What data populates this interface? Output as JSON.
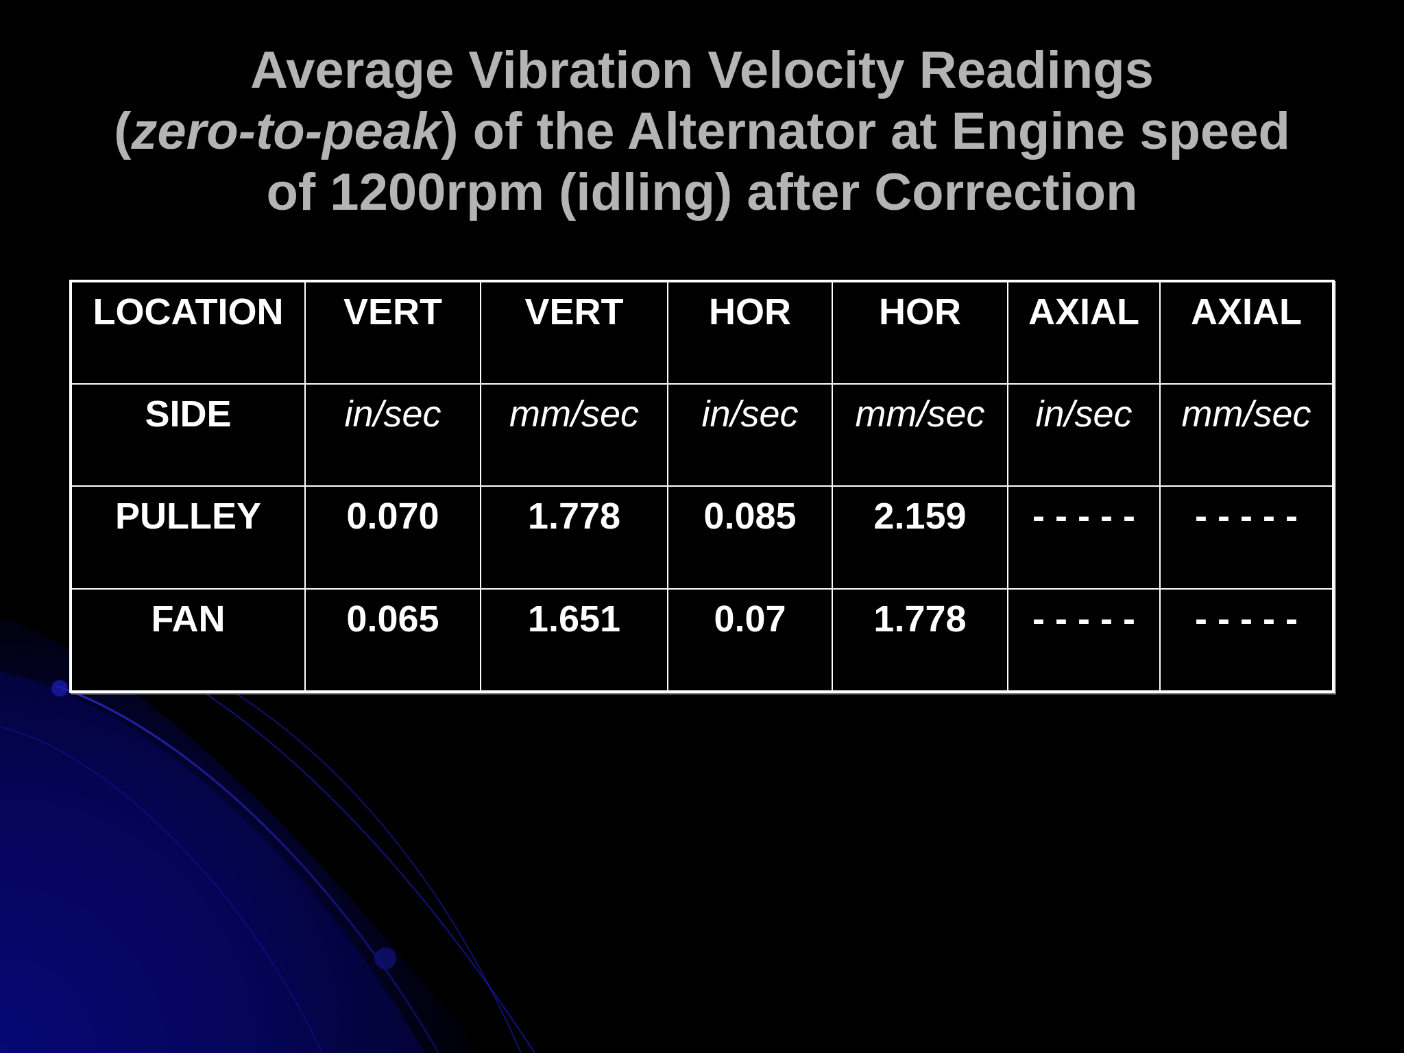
{
  "slide": {
    "title_line1": "Average Vibration Velocity Readings",
    "title_line2_open": "(",
    "title_line2_italic": "zero-to-peak",
    "title_line2_rest": ") of the Alternator at Engine speed",
    "title_line3": "of 1200rpm (idling) after Correction"
  },
  "table": {
    "headers": [
      "LOCATION",
      "VERT",
      "VERT",
      "HOR",
      "HOR",
      "AXIAL",
      "AXIAL"
    ],
    "units": [
      "SIDE",
      "in/sec",
      "mm/sec",
      "in/sec",
      "mm/sec",
      "in/sec",
      "mm/sec"
    ],
    "rows": [
      [
        "PULLEY",
        "0.070",
        "1.778",
        "0.085",
        "2.159",
        "- - - - -",
        "- - - - -"
      ],
      [
        "FAN",
        "0.065",
        "1.651",
        "0.07",
        "1.778",
        "- - - - -",
        "- - - - -"
      ]
    ]
  },
  "colors": {
    "background": "#000000",
    "title_text": "#b4b4b4",
    "table_text": "#ffffff",
    "table_border": "#ffffff",
    "decoration_accent": "#1a1ab8"
  }
}
